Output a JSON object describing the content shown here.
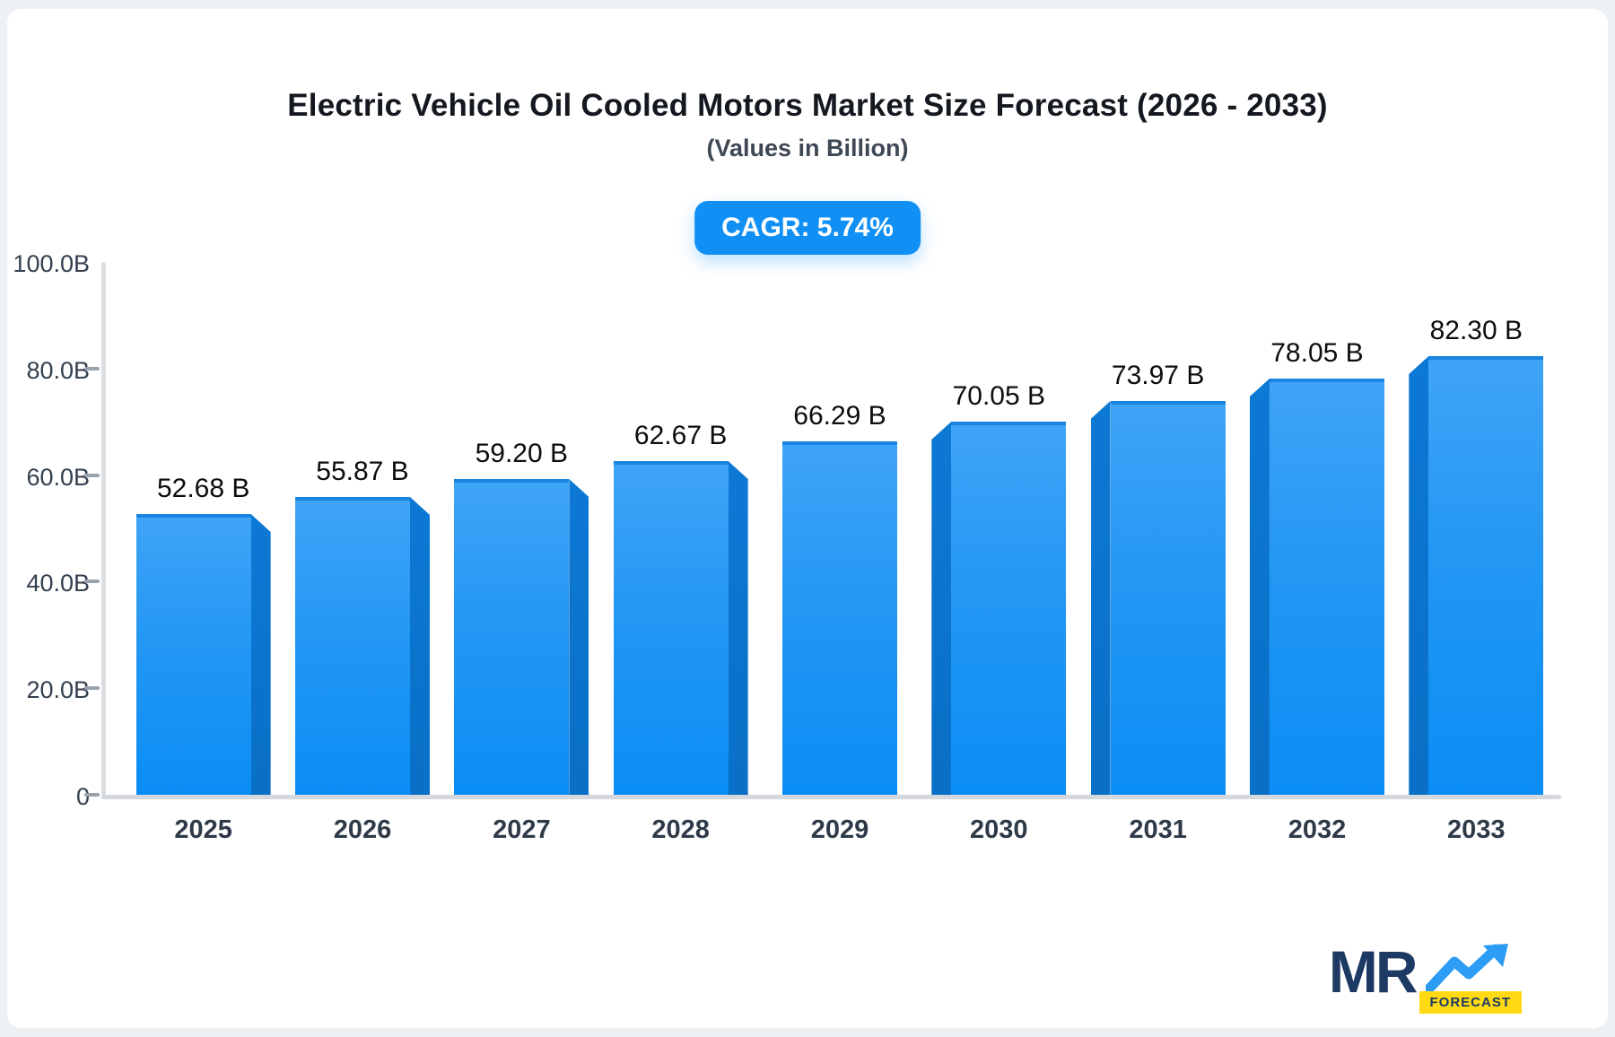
{
  "header": {
    "title": "Electric Vehicle Oil Cooled Motors Market Size Forecast (2026 - 2033)",
    "subtitle": "(Values in Billion)"
  },
  "badge": {
    "label": "CAGR: 5.74%",
    "background": "#1090f5",
    "text_color": "#ffffff"
  },
  "chart_data": {
    "type": "bar",
    "title": "Electric Vehicle Oil Cooled Motors Market Size Forecast (2026 - 2033)",
    "subtitle": "(Values in Billion)",
    "categories": [
      "2025",
      "2026",
      "2027",
      "2028",
      "2029",
      "2030",
      "2031",
      "2032",
      "2033"
    ],
    "values": [
      52.68,
      55.87,
      59.2,
      62.67,
      66.29,
      70.05,
      73.97,
      78.05,
      82.3
    ],
    "value_labels": [
      "52.68 B",
      "55.87 B",
      "59.20 B",
      "62.67 B",
      "66.29 B",
      "70.05 B",
      "73.97 B",
      "78.05 B",
      "82.30 B"
    ],
    "xlabel": "",
    "ylabel": "",
    "ylim": [
      0,
      100
    ],
    "yticks": [
      {
        "label": "100.0B",
        "value": 100,
        "dash": false
      },
      {
        "label": "80.0B",
        "value": 80,
        "dash": true
      },
      {
        "label": "60.0B",
        "value": 60,
        "dash": true
      },
      {
        "label": "40.0B",
        "value": 40,
        "dash": true
      },
      {
        "label": "20.0B",
        "value": 20,
        "dash": true
      },
      {
        "label": "0",
        "value": 0,
        "dash": true
      }
    ],
    "grid": false,
    "legend": false,
    "bar_colors": {
      "face_top": "#3fa4f7",
      "face_bottom": "#0a8df5",
      "face_edge": "#1a85e0",
      "side_face": "#0a72cb"
    },
    "cagr_annotation": "CAGR: 5.74%"
  },
  "logo": {
    "text": "MR",
    "sub_label": "FORECAST",
    "text_color": "#1c3a63",
    "sub_background": "#ffd912",
    "arrow_color": "#2d9cf5"
  }
}
